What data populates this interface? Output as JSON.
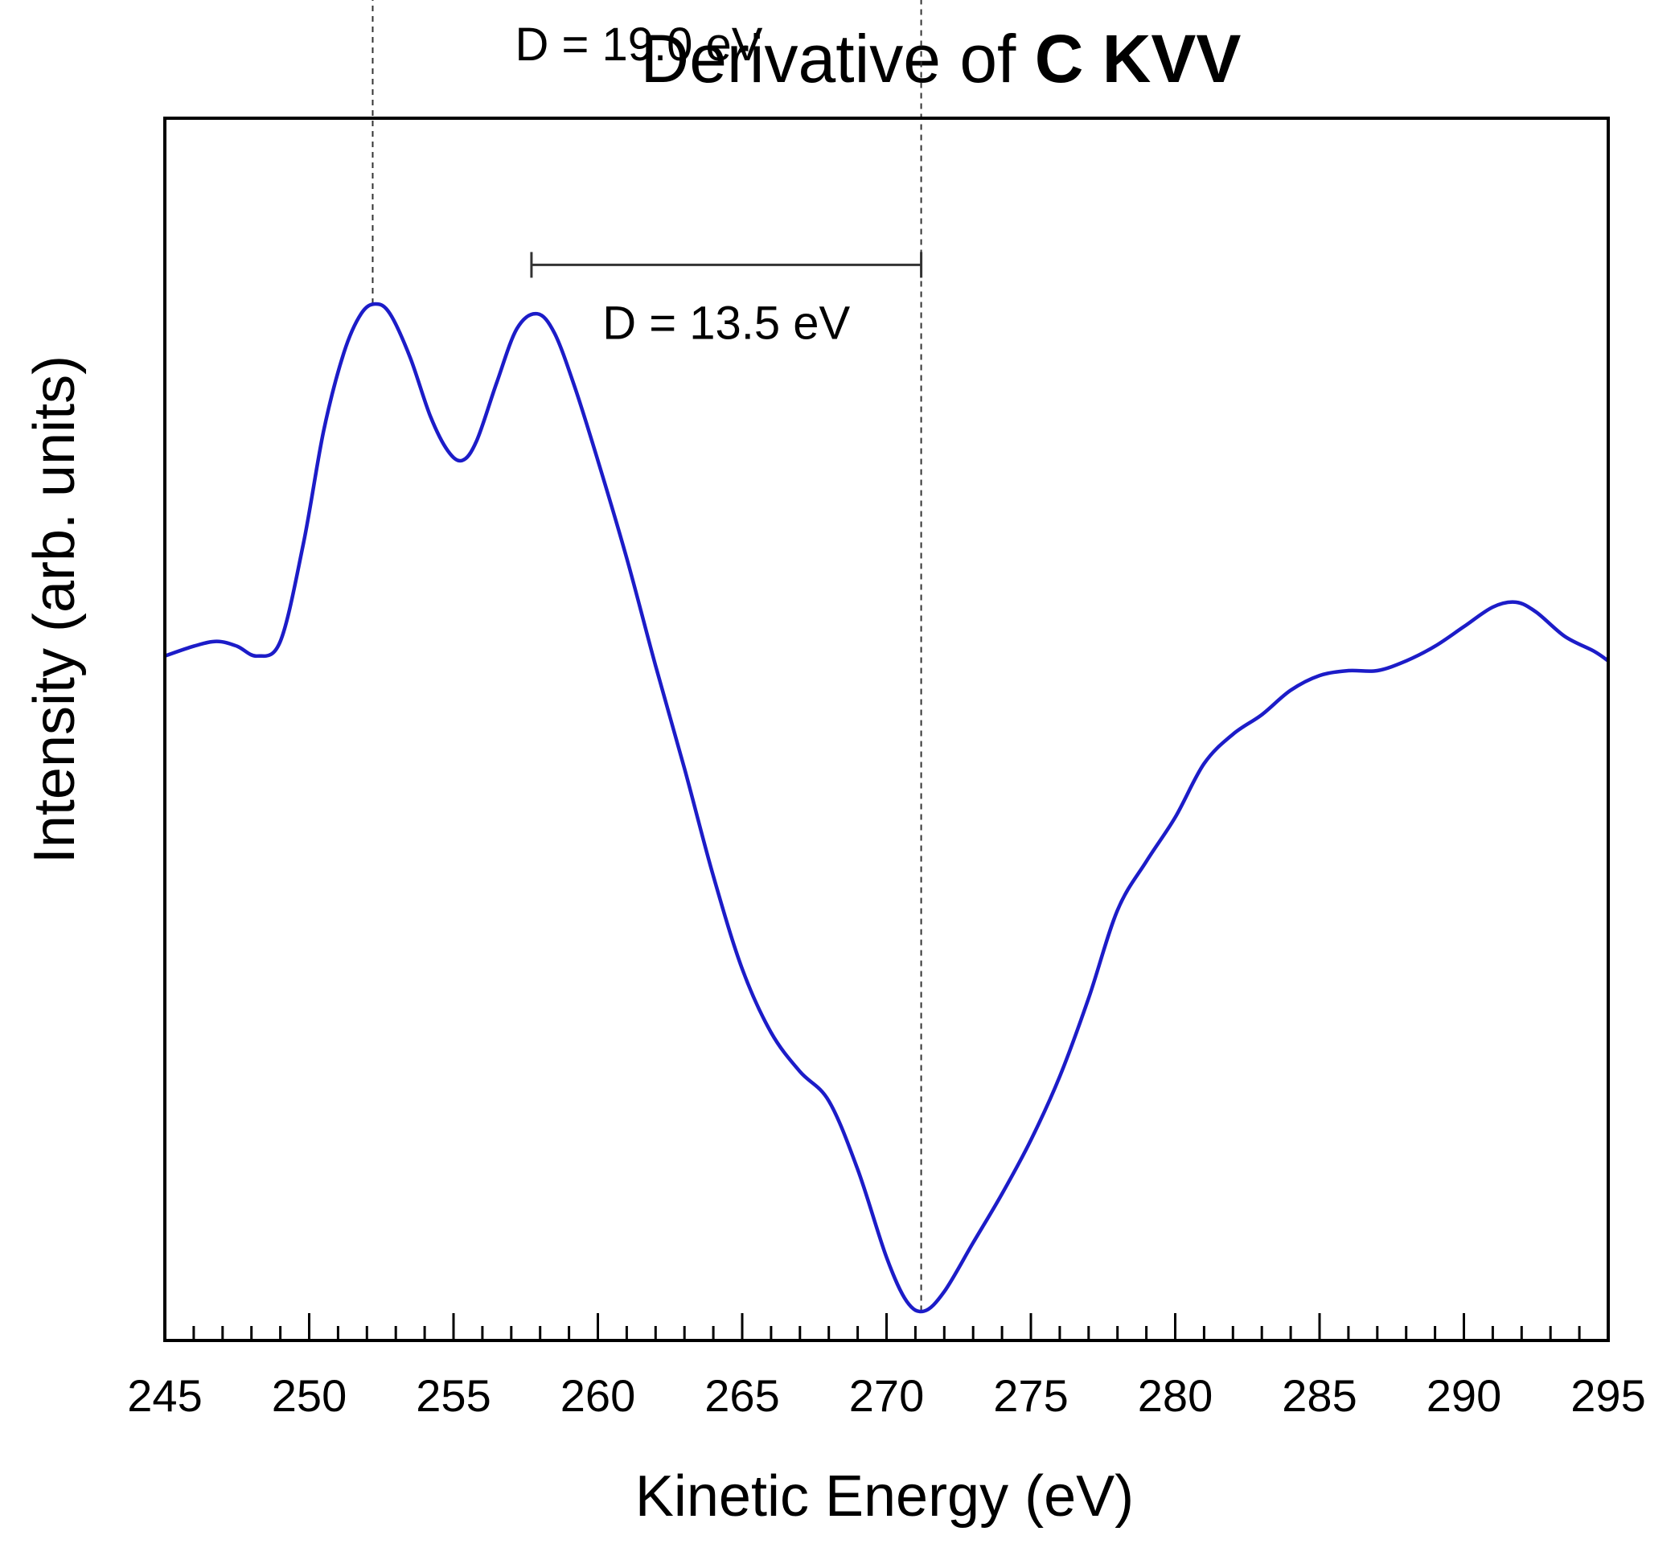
{
  "chart_data": {
    "type": "line",
    "title_prefix": "Derivative of ",
    "title_bold": "C KVV",
    "xlabel": "Kinetic Energy (eV)",
    "ylabel": "Intensity (arb. units)",
    "xlim": [
      245,
      295
    ],
    "ylim": [
      -1.0,
      1.5
    ],
    "x_ticks": [
      245,
      250,
      255,
      260,
      265,
      270,
      275,
      280,
      285,
      290,
      295
    ],
    "x_tick_labels": [
      "245",
      "250",
      "255",
      "260",
      "265",
      "270",
      "275",
      "280",
      "285",
      "290",
      "295"
    ],
    "minor_tick_step": 1,
    "grid": false,
    "line_color": "#1c1cc8",
    "series": [
      {
        "name": "C KVV derivative",
        "x": [
          245,
          246,
          246.8,
          247.5,
          248.2,
          249,
          249.8,
          250.5,
          251.2,
          251.8,
          252.3,
          252.8,
          253.5,
          254.2,
          254.8,
          255.3,
          255.8,
          256.5,
          257.2,
          257.9,
          258.5,
          259.2,
          260,
          261,
          262,
          263,
          264,
          265,
          266,
          267,
          268,
          269,
          270,
          270.7,
          271.3,
          272,
          273,
          274,
          275,
          276,
          277,
          278,
          279,
          280,
          281,
          282,
          283,
          284,
          285,
          286,
          287,
          288,
          289,
          290,
          291,
          291.8,
          292.5,
          293.5,
          294.5,
          295
        ],
        "y": [
          0.4,
          0.42,
          0.43,
          0.42,
          0.4,
          0.43,
          0.63,
          0.86,
          1.02,
          1.1,
          1.12,
          1.1,
          1.01,
          0.89,
          0.82,
          0.8,
          0.84,
          0.96,
          1.07,
          1.1,
          1.06,
          0.95,
          0.8,
          0.6,
          0.38,
          0.17,
          -0.05,
          -0.24,
          -0.37,
          -0.45,
          -0.51,
          -0.65,
          -0.83,
          -0.92,
          -0.94,
          -0.9,
          -0.8,
          -0.7,
          -0.59,
          -0.46,
          -0.3,
          -0.12,
          -0.02,
          0.07,
          0.18,
          0.24,
          0.28,
          0.33,
          0.36,
          0.37,
          0.37,
          0.39,
          0.42,
          0.46,
          0.5,
          0.51,
          0.49,
          0.44,
          0.41,
          0.39
        ]
      }
    ],
    "annotations": [
      {
        "label": "D = 19.0 eV",
        "x_start": 252.2,
        "x_end": 271.2,
        "y": 1.77
      },
      {
        "label": "D = 13.5 eV",
        "x_start": 257.7,
        "x_end": 271.2,
        "y": 1.2
      }
    ],
    "reference_lines": [
      {
        "x": 252.2,
        "y_from": 1.12,
        "y_to": 1.77
      },
      {
        "x": 271.2,
        "y_from": -0.94,
        "y_to": 1.77
      }
    ]
  }
}
